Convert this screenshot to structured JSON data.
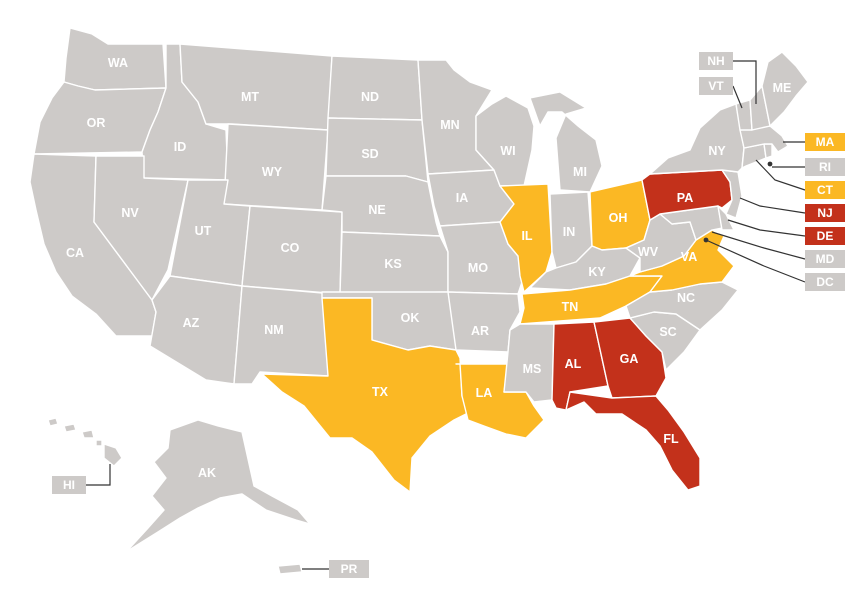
{
  "colors": {
    "neutral": "#cdcac8",
    "highlight_yellow": "#fbb824",
    "highlight_red": "#c3311b",
    "label_text": "#ffffff",
    "leader_line": "#333333"
  },
  "states": {
    "WA": {
      "label": "WA",
      "color": "gray"
    },
    "OR": {
      "label": "OR",
      "color": "gray"
    },
    "CA": {
      "label": "CA",
      "color": "gray"
    },
    "ID": {
      "label": "ID",
      "color": "gray"
    },
    "NV": {
      "label": "NV",
      "color": "gray"
    },
    "MT": {
      "label": "MT",
      "color": "gray"
    },
    "WY": {
      "label": "WY",
      "color": "gray"
    },
    "UT": {
      "label": "UT",
      "color": "gray"
    },
    "AZ": {
      "label": "AZ",
      "color": "gray"
    },
    "CO": {
      "label": "CO",
      "color": "gray"
    },
    "NM": {
      "label": "NM",
      "color": "gray"
    },
    "ND": {
      "label": "ND",
      "color": "gray"
    },
    "SD": {
      "label": "SD",
      "color": "gray"
    },
    "NE": {
      "label": "NE",
      "color": "gray"
    },
    "KS": {
      "label": "KS",
      "color": "gray"
    },
    "OK": {
      "label": "OK",
      "color": "gray"
    },
    "TX": {
      "label": "TX",
      "color": "yellow"
    },
    "MN": {
      "label": "MN",
      "color": "gray"
    },
    "IA": {
      "label": "IA",
      "color": "gray"
    },
    "MO": {
      "label": "MO",
      "color": "gray"
    },
    "AR": {
      "label": "AR",
      "color": "gray"
    },
    "LA": {
      "label": "LA",
      "color": "yellow"
    },
    "WI": {
      "label": "WI",
      "color": "gray"
    },
    "IL": {
      "label": "IL",
      "color": "yellow"
    },
    "MI": {
      "label": "MI",
      "color": "gray"
    },
    "IN": {
      "label": "IN",
      "color": "gray"
    },
    "OH": {
      "label": "OH",
      "color": "yellow"
    },
    "KY": {
      "label": "KY",
      "color": "gray"
    },
    "TN": {
      "label": "TN",
      "color": "yellow"
    },
    "MS": {
      "label": "MS",
      "color": "gray"
    },
    "AL": {
      "label": "AL",
      "color": "red"
    },
    "GA": {
      "label": "GA",
      "color": "red"
    },
    "FL": {
      "label": "FL",
      "color": "red"
    },
    "SC": {
      "label": "SC",
      "color": "gray"
    },
    "NC": {
      "label": "NC",
      "color": "gray"
    },
    "VA": {
      "label": "VA",
      "color": "yellow"
    },
    "WV": {
      "label": "WV",
      "color": "gray"
    },
    "PA": {
      "label": "PA",
      "color": "red"
    },
    "NY": {
      "label": "NY",
      "color": "gray"
    },
    "ME": {
      "label": "ME",
      "color": "gray"
    },
    "AK": {
      "label": "AK",
      "color": "gray"
    }
  },
  "callouts": {
    "NH": {
      "label": "NH",
      "color": "gray"
    },
    "VT": {
      "label": "VT",
      "color": "gray"
    },
    "MA": {
      "label": "MA",
      "color": "yellow"
    },
    "RI": {
      "label": "RI",
      "color": "gray"
    },
    "CT": {
      "label": "CT",
      "color": "yellow"
    },
    "NJ": {
      "label": "NJ",
      "color": "red"
    },
    "DE": {
      "label": "DE",
      "color": "red"
    },
    "MD": {
      "label": "MD",
      "color": "gray"
    },
    "DC": {
      "label": "DC",
      "color": "gray"
    },
    "HI": {
      "label": "HI",
      "color": "gray"
    },
    "PR": {
      "label": "PR",
      "color": "gray"
    }
  }
}
